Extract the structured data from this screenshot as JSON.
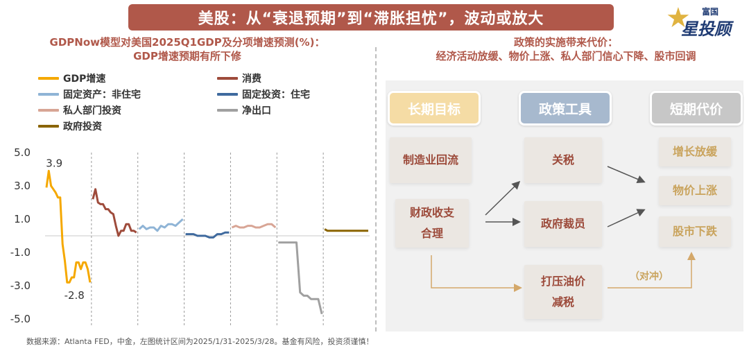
{
  "banner_title": "美股：从“衰退预期”到“滞胀担忧”，波动或放大",
  "logo": {
    "small": "富国",
    "big": "星投顾"
  },
  "left_title_line1": "GDPNow模型对美国2025Q1GDP及分项增速预测(%)：",
  "left_title_line2": "GDP增速预期有所下修",
  "right_title_line1": "政策的实施带来代价：",
  "right_title_line2": "经济活动放缓、物价上涨、私人部门信心下降、股市回调",
  "chart_data": {
    "type": "line",
    "title": "GDPNow模型对美国2025Q1GDP及分项增速预测(%)：GDP增速预期有所下修",
    "ylim": [
      -5,
      5
    ],
    "yticks": [
      "5.0",
      "3.0",
      "1.0",
      "-1.0",
      "-3.0",
      "-5.0"
    ],
    "grid": false,
    "legend_position": "top",
    "annotations": [
      {
        "text": "3.9",
        "series": "GDP增速",
        "at": "max"
      },
      {
        "text": "-2.8",
        "series": "GDP增速",
        "at": "end"
      }
    ],
    "series": [
      {
        "name": "GDP增速",
        "color": "#f5a800",
        "values": [
          2.9,
          3.9,
          3.0,
          2.8,
          2.6,
          2.3,
          2.3,
          -0.5,
          -1.5,
          -2.8,
          -2.8,
          -2.5,
          -2.5,
          -1.6,
          -1.6,
          -2.0,
          -1.6,
          -1.6,
          -2.0,
          -2.8
        ]
      },
      {
        "name": "消费",
        "color": "#9e4b3b",
        "values": [
          2.2,
          2.8,
          2.0,
          1.9,
          1.9,
          1.6,
          1.6,
          1.4,
          1.3,
          0.6,
          0.0,
          0.3,
          0.3,
          0.7,
          0.7,
          0.3,
          0.3,
          0.2
        ]
      },
      {
        "name": "固定资产：非住宅",
        "color": "#8fb4d6",
        "values": [
          0.4,
          0.6,
          0.4,
          0.5,
          0.5,
          0.3,
          0.6,
          0.5,
          0.7,
          0.7,
          0.6,
          0.8,
          1.0
        ]
      },
      {
        "name": "固定投资：住宅",
        "color": "#3f6a9e",
        "values": [
          0.1,
          0.1,
          0.1,
          0.0,
          0.0,
          0.0,
          -0.1,
          -0.1,
          0.1,
          0.1,
          0.2,
          0.2
        ]
      },
      {
        "name": "私人部门投资",
        "color": "#d8a595",
        "values": [
          0.5,
          0.6,
          0.5,
          0.5,
          0.6,
          0.6,
          0.5,
          0.5,
          0.6,
          0.7,
          0.7,
          0.5
        ]
      },
      {
        "name": "净出口",
        "color": "#a0a0a0",
        "values": [
          -0.4,
          -0.4,
          -0.4,
          -0.4,
          -0.4,
          -0.4,
          -3.4,
          -3.6,
          -3.6,
          -3.8,
          -3.8,
          -3.8,
          -4.7
        ]
      },
      {
        "name": "政府投资",
        "color": "#8a6400",
        "values": [
          0.4,
          0.3,
          0.3,
          0.3,
          0.3,
          0.3,
          0.3,
          0.3,
          0.3,
          0.3,
          0.3,
          0.3,
          0.3,
          0.3,
          0.3,
          0.3
        ]
      }
    ]
  },
  "flow": {
    "headers": {
      "long_term": "长期目标",
      "tools": "政策工具",
      "short_term": "短期代价"
    },
    "goals": {
      "reshoring": "制造业回流",
      "fiscal_line1": "财政收支",
      "fiscal_line2": "合理"
    },
    "tools": {
      "tariff": "关税",
      "layoffs": "政府裁员",
      "oil_line1": "打压油价",
      "oil_line2": "减税"
    },
    "costs": {
      "slowdown": "增长放缓",
      "inflation": "物价上涨",
      "stock_fall": "股市下跌"
    },
    "hedge_label": "（对冲）",
    "colors": {
      "long_term": "#f5dca5",
      "tools": "#a7b9ce",
      "short_term": "#c7c7c7"
    }
  },
  "footnote": "数据来源：Atlanta FED，中金，左图统计区间为2025/1/31-2025/3/28。基金有风险，投资须谨慎！"
}
